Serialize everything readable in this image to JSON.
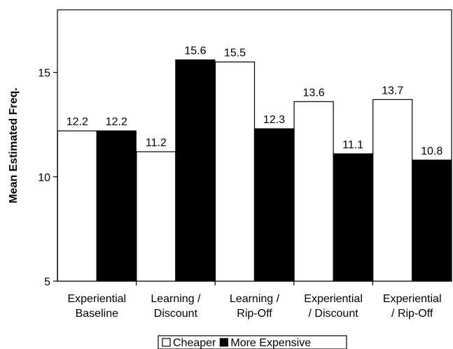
{
  "chart_data": {
    "type": "bar",
    "ylabel": "Mean Estimated Freq.",
    "ylim": [
      5,
      18
    ],
    "yticks": [
      "5",
      "10",
      "15"
    ],
    "categories": [
      [
        "Experiential",
        "Baseline"
      ],
      [
        "Learning /",
        "Discount"
      ],
      [
        "Learning /",
        "Rip-Off"
      ],
      [
        "Experiential",
        "/ Discount"
      ],
      [
        "Experiential",
        "/ Rip-Off"
      ]
    ],
    "series": [
      {
        "name": "Cheaper",
        "color": "#ffffff",
        "values": [
          12.2,
          11.2,
          15.5,
          13.6,
          13.7
        ],
        "labels": [
          "12.2",
          "11.2",
          "15.5",
          "13.6",
          "13.7"
        ]
      },
      {
        "name": "More Expensive",
        "color": "#000000",
        "values": [
          12.2,
          15.6,
          12.3,
          11.1,
          10.8
        ],
        "labels": [
          "12.2",
          "15.6",
          "12.3",
          "11.1",
          "10.8"
        ]
      }
    ],
    "legend": "bottom",
    "grid": false
  }
}
